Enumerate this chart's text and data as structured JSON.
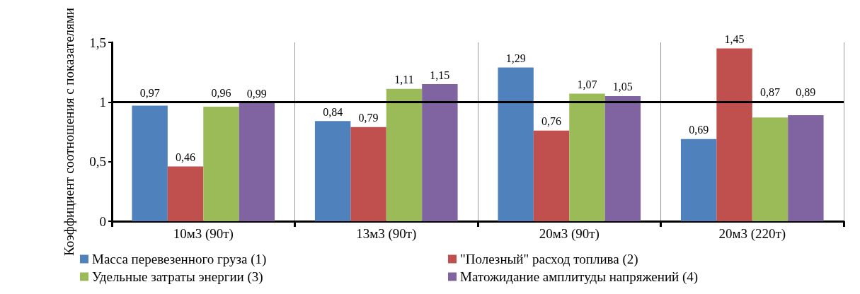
{
  "chart_data": {
    "type": "bar",
    "ylabel": "Коэффициент соотношения с показателями",
    "categories": [
      "10м3 (90т)",
      "13м3 (90т)",
      "20м3 (90т)",
      "20м3 (220т)"
    ],
    "series": [
      {
        "name": "Масса перевезенного груза (1)",
        "color": "#4f81bd",
        "values": [
          0.97,
          0.84,
          1.29,
          0.69
        ],
        "value_labels": [
          "0,97",
          "0,84",
          "1,29",
          "0,69"
        ]
      },
      {
        "name": "\"Полезный\" расход топлива (2)",
        "color": "#c0504d",
        "values": [
          0.46,
          0.79,
          0.76,
          1.45
        ],
        "value_labels": [
          "0,46",
          "0,79",
          "0,76",
          "1,45"
        ]
      },
      {
        "name": "Удельные затраты энергии (3)",
        "color": "#9bbb59",
        "values": [
          0.96,
          1.11,
          1.07,
          0.87
        ],
        "value_labels": [
          "0,96",
          "1,11",
          "1,07",
          "0,87"
        ]
      },
      {
        "name": "Матожидание амплитуды напряжений (4)",
        "color": "#8064a2",
        "values": [
          0.99,
          1.15,
          1.05,
          0.89
        ],
        "value_labels": [
          "0,99",
          "1,15",
          "1,05",
          "0,89"
        ]
      }
    ],
    "ylim": [
      0,
      1.5
    ],
    "yticks": [
      0,
      {
        "value": 0.5,
        "label": "0,5"
      },
      1,
      {
        "value": 1.5,
        "label": "1,5"
      }
    ],
    "ref_lines": [
      {
        "axis": "y",
        "value": 1,
        "color": "#000000"
      }
    ],
    "grid": "x",
    "legend": "bottom"
  }
}
